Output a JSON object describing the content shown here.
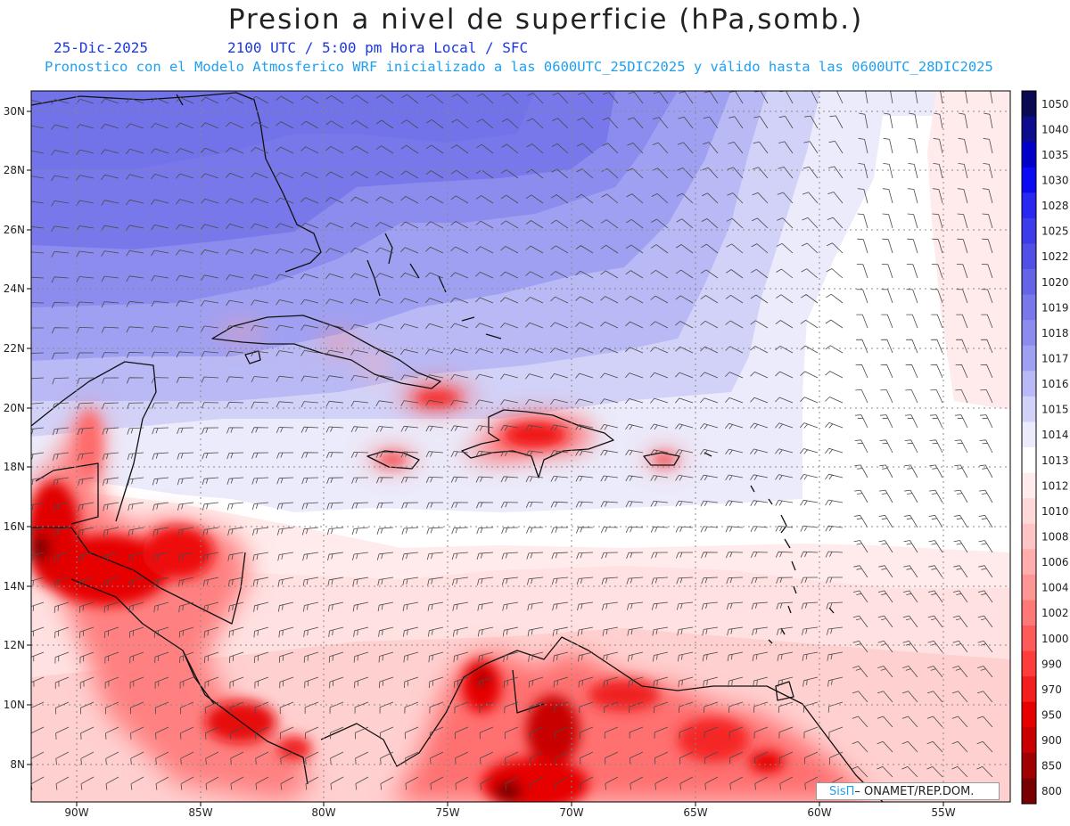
{
  "header": {
    "title": "Presion a nivel de superficie (hPa,somb.)",
    "date": "25-Dic-2025",
    "time": "2100 UTC / 5:00 pm Hora Local / SFC",
    "description": "Pronostico con el Modelo Atmosferico WRF inicializado a las 0600UTC_25DIC2025 y válido hasta las  0600UTC_28DIC2025"
  },
  "map": {
    "lon_range": [
      -92,
      -52
    ],
    "lat_range": [
      6.5,
      30.8
    ],
    "lon_ticks": [
      "90W",
      "85W",
      "80W",
      "75W",
      "70W",
      "65W",
      "60W",
      "55W"
    ],
    "lat_ticks": [
      "30N",
      "28N",
      "26N",
      "24N",
      "22N",
      "20N",
      "18N",
      "16N",
      "14N",
      "12N",
      "10N",
      "8N"
    ]
  },
  "legend": {
    "levels": [
      "1050",
      "1040",
      "1035",
      "1030",
      "1028",
      "1025",
      "1022",
      "1020",
      "1019",
      "1018",
      "1017",
      "1016",
      "1015",
      "1014",
      "1013",
      "1012",
      "1010",
      "1008",
      "1006",
      "1004",
      "1002",
      "1000",
      "990",
      "970",
      "950",
      "900",
      "850",
      "800"
    ],
    "colors": [
      "#0a0a52",
      "#0c0c8c",
      "#0000c8",
      "#0a0af5",
      "#2828f0",
      "#3c3ceb",
      "#5050e6",
      "#6464e6",
      "#7878ea",
      "#8c8cee",
      "#a0a0f2",
      "#b9b9f5",
      "#d2d2f8",
      "#ebebfb",
      "#ffffff",
      "#ffebeb",
      "#ffd9d9",
      "#ffc4c4",
      "#ffadad",
      "#ff9696",
      "#ff7878",
      "#ff5a5a",
      "#ff3c3c",
      "#f51e1e",
      "#e60000",
      "#c80000",
      "#a00000",
      "#780000"
    ]
  },
  "credit": {
    "brand": "SisΠ",
    "org": "– ONAMET/REP.DOM."
  }
}
